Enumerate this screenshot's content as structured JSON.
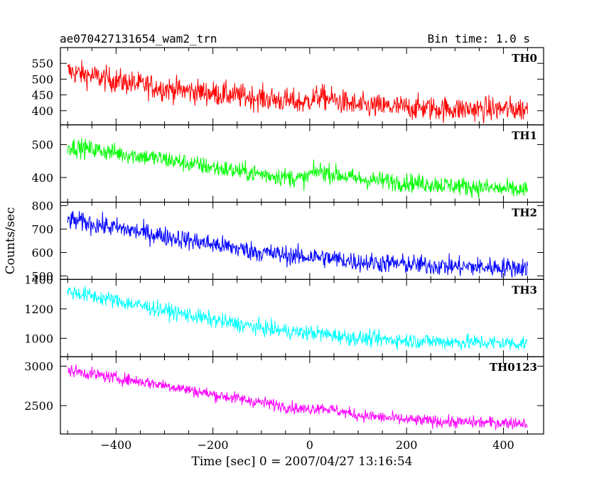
{
  "header": {
    "title": "ae070427131654_wam2_trn",
    "bin_time": "Bin time: 1.0 s"
  },
  "chart_data": {
    "type": "line",
    "xlabel": "Time [sec] 0 = 2007/04/27 13:16:54",
    "ylabel": "Counts/sec",
    "xlim": [
      -515,
      483
    ],
    "x_ticks": [
      -400,
      -200,
      0,
      200,
      400
    ],
    "x_range": [
      -500,
      450
    ],
    "bin_time_s": 1.0,
    "panels": [
      {
        "name": "TH0",
        "color": "#ff0000",
        "ylim": [
          355,
          600
        ],
        "y_ticks": [
          400,
          450,
          500,
          550
        ],
        "trend": [
          [
            -500,
            525
          ],
          [
            -400,
            495
          ],
          [
            -300,
            470
          ],
          [
            -200,
            455
          ],
          [
            -100,
            440
          ],
          [
            -10,
            425
          ],
          [
            0,
            435
          ],
          [
            20,
            445
          ],
          [
            100,
            415
          ],
          [
            200,
            410
          ],
          [
            300,
            405
          ],
          [
            450,
            405
          ]
        ],
        "noise": 28
      },
      {
        "name": "TH1",
        "color": "#00ff00",
        "ylim": [
          325,
          560
        ],
        "y_ticks": [
          400,
          500
        ],
        "trend": [
          [
            -500,
            495
          ],
          [
            -400,
            475
          ],
          [
            -300,
            455
          ],
          [
            -200,
            430
          ],
          [
            -100,
            410
          ],
          [
            -10,
            395
          ],
          [
            0,
            410
          ],
          [
            20,
            420
          ],
          [
            100,
            395
          ],
          [
            200,
            385
          ],
          [
            300,
            375
          ],
          [
            450,
            360
          ]
        ],
        "noise": 20
      },
      {
        "name": "TH2",
        "color": "#0000ff",
        "ylim": [
          485,
          815
        ],
        "y_ticks": [
          500,
          600,
          700,
          800
        ],
        "trend": [
          [
            -500,
            740
          ],
          [
            -400,
            705
          ],
          [
            -300,
            670
          ],
          [
            -200,
            635
          ],
          [
            -100,
            600
          ],
          [
            -10,
            580
          ],
          [
            0,
            585
          ],
          [
            100,
            560
          ],
          [
            200,
            550
          ],
          [
            300,
            540
          ],
          [
            450,
            535
          ]
        ],
        "noise": 30
      },
      {
        "name": "TH3",
        "color": "#00ffff",
        "ylim": [
          875,
          1400
        ],
        "y_ticks": [
          1000,
          1200,
          1400
        ],
        "trend": [
          [
            -500,
            1320
          ],
          [
            -400,
            1255
          ],
          [
            -300,
            1190
          ],
          [
            -200,
            1125
          ],
          [
            -100,
            1070
          ],
          [
            -10,
            1035
          ],
          [
            0,
            1040
          ],
          [
            100,
            1000
          ],
          [
            200,
            985
          ],
          [
            300,
            975
          ],
          [
            450,
            965
          ]
        ],
        "noise": 38
      },
      {
        "name": "TH0123",
        "color": "#ff00ff",
        "ylim": [
          2140,
          3120
        ],
        "y_ticks": [
          2500,
          3000
        ],
        "trend": [
          [
            -500,
            2950
          ],
          [
            -400,
            2850
          ],
          [
            -300,
            2760
          ],
          [
            -200,
            2640
          ],
          [
            -100,
            2540
          ],
          [
            -10,
            2450
          ],
          [
            0,
            2460
          ],
          [
            20,
            2480
          ],
          [
            100,
            2380
          ],
          [
            200,
            2320
          ],
          [
            300,
            2290
          ],
          [
            450,
            2280
          ]
        ],
        "noise": 55
      }
    ]
  }
}
